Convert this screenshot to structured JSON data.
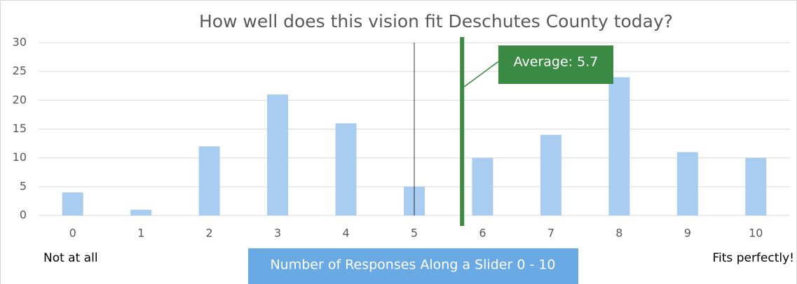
{
  "chart_data": {
    "type": "bar",
    "title": "How well does this vision fit Deschutes County today?",
    "categories": [
      "0",
      "1",
      "2",
      "3",
      "4",
      "5",
      "6",
      "7",
      "8",
      "9",
      "10"
    ],
    "values": [
      4,
      1,
      12,
      21,
      16,
      5,
      10,
      14,
      24,
      11,
      10
    ],
    "color": "#a9cdf0",
    "ylim": [
      0,
      30
    ],
    "yticks": [
      0,
      5,
      10,
      15,
      20,
      25,
      30
    ],
    "grid": true,
    "x_label": "Number of Responses Along a Slider 0 - 10",
    "x_left_note": "Not at all",
    "x_right_note": "Fits perfectly!",
    "average": {
      "value": 5.7,
      "label": "Average: 5.7"
    }
  }
}
